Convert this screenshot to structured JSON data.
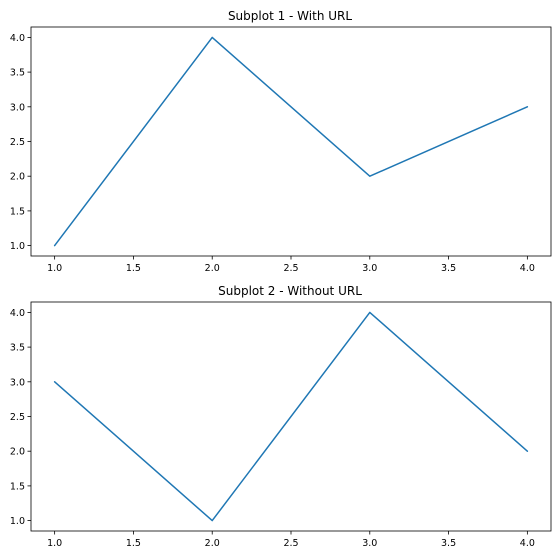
{
  "chart_data": [
    {
      "type": "line",
      "title": "Subplot 1 - With URL",
      "xlabel": "",
      "ylabel": "",
      "x": [
        1,
        2,
        3,
        4
      ],
      "series": [
        {
          "values": [
            1,
            4,
            2,
            3
          ]
        }
      ],
      "xlim": [
        0.85,
        4.15
      ],
      "ylim": [
        0.85,
        4.15
      ],
      "xticks": [
        1.0,
        1.5,
        2.0,
        2.5,
        3.0,
        3.5,
        4.0
      ],
      "yticks": [
        1.0,
        1.5,
        2.0,
        2.5,
        3.0,
        3.5,
        4.0
      ],
      "xtick_labels": [
        "1.0",
        "1.5",
        "2.0",
        "2.5",
        "3.0",
        "3.5",
        "4.0"
      ],
      "ytick_labels": [
        "1.0",
        "1.5",
        "2.0",
        "2.5",
        "3.0",
        "3.5",
        "4.0"
      ],
      "grid": false,
      "legend": "none"
    },
    {
      "type": "line",
      "title": "Subplot 2 - Without URL",
      "xlabel": "",
      "ylabel": "",
      "x": [
        1,
        2,
        3,
        4
      ],
      "series": [
        {
          "values": [
            3,
            1,
            4,
            2
          ]
        }
      ],
      "xlim": [
        0.85,
        4.15
      ],
      "ylim": [
        0.85,
        4.15
      ],
      "xticks": [
        1.0,
        1.5,
        2.0,
        2.5,
        3.0,
        3.5,
        4.0
      ],
      "yticks": [
        1.0,
        1.5,
        2.0,
        2.5,
        3.0,
        3.5,
        4.0
      ],
      "xtick_labels": [
        "1.0",
        "1.5",
        "2.0",
        "2.5",
        "3.0",
        "3.5",
        "4.0"
      ],
      "ytick_labels": [
        "1.0",
        "1.5",
        "2.0",
        "2.5",
        "3.0",
        "3.5",
        "4.0"
      ],
      "grid": false,
      "legend": "none"
    }
  ],
  "colors": {
    "line": "#1f77b4"
  }
}
